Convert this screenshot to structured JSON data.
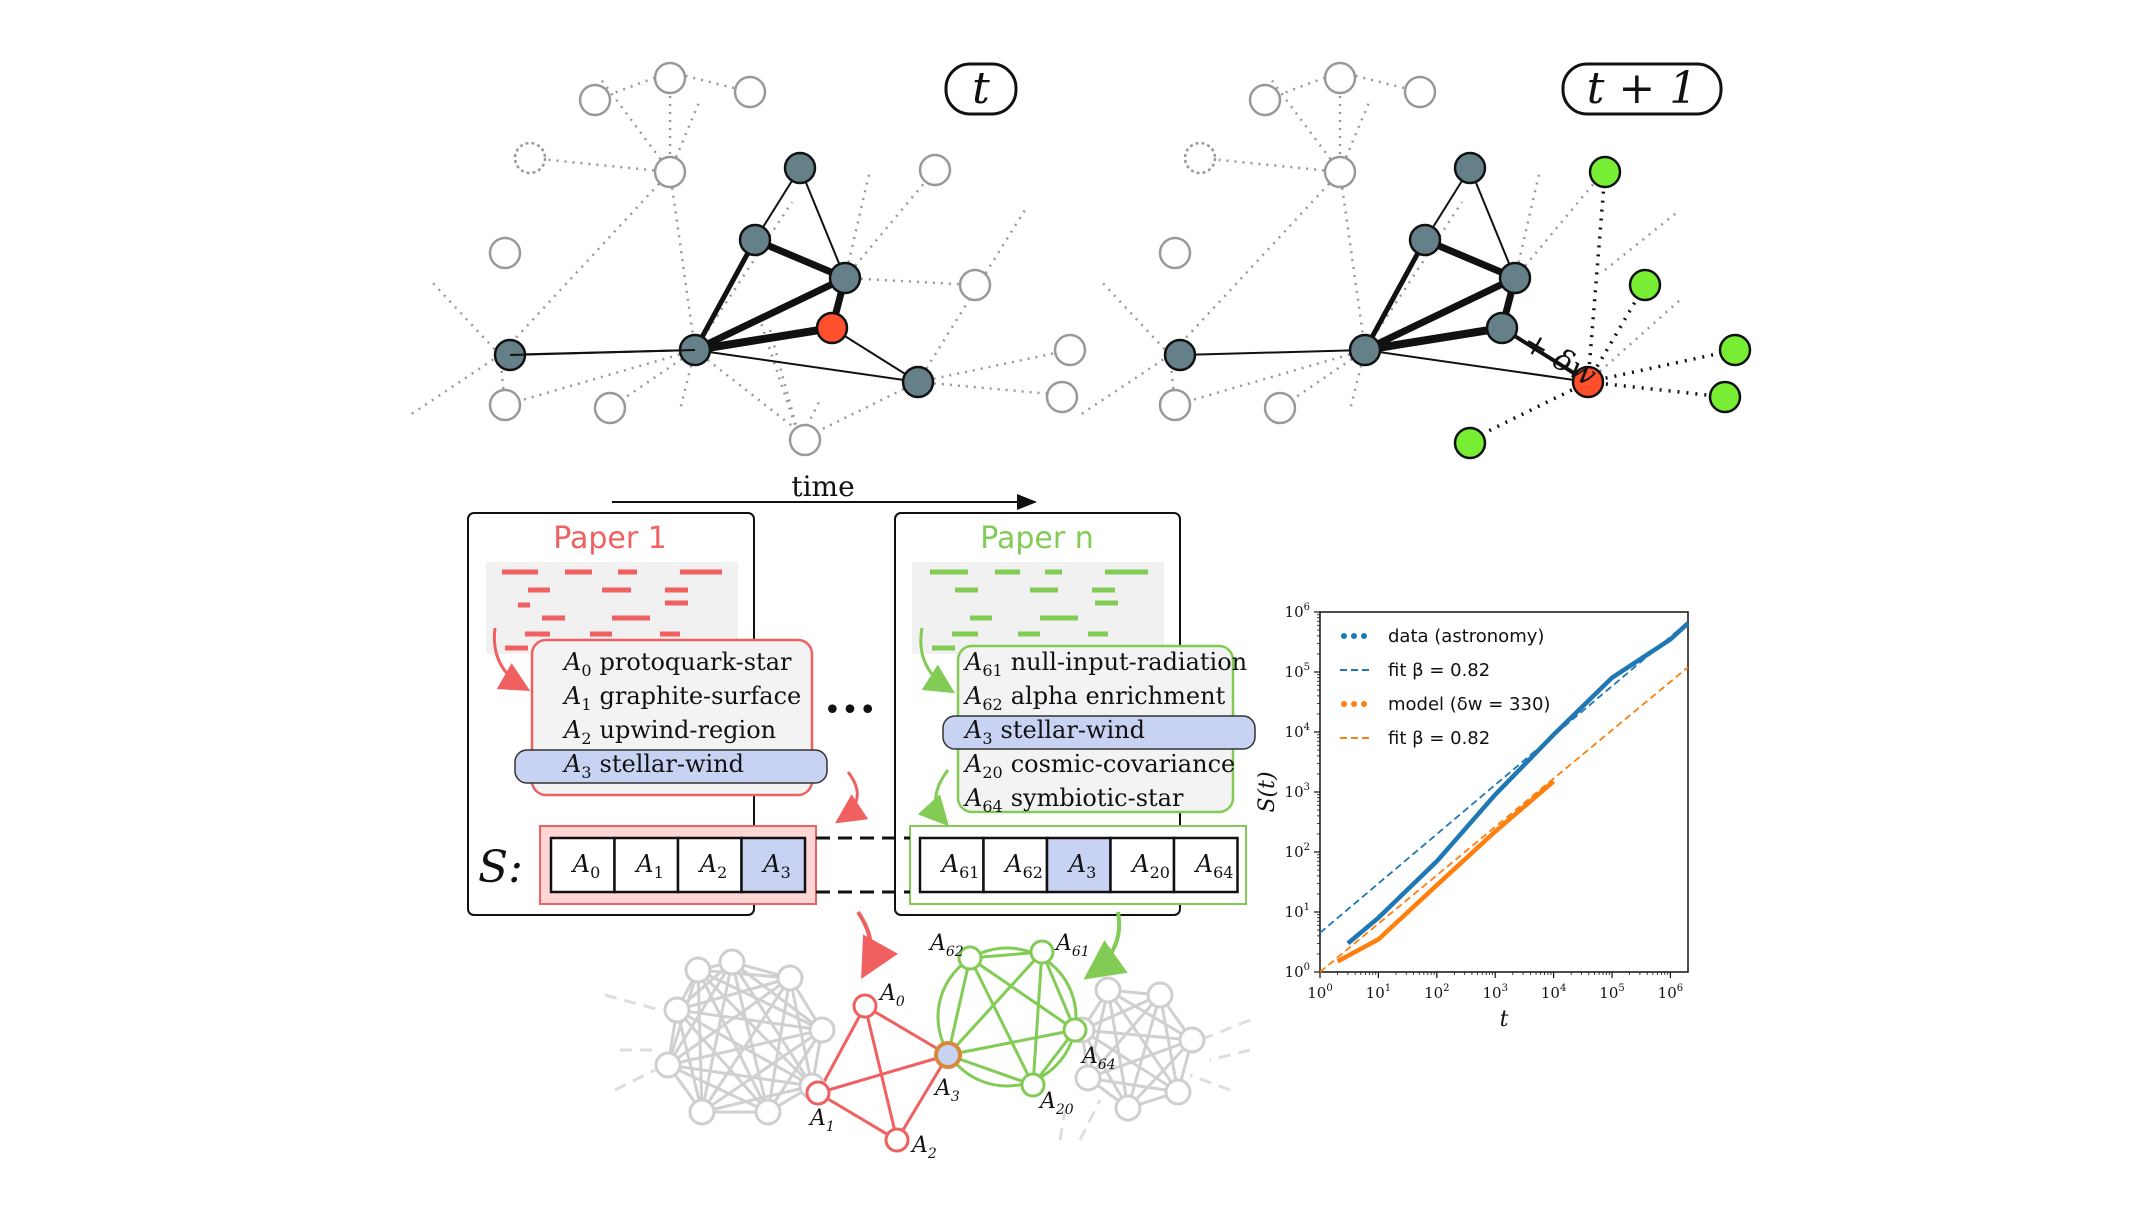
{
  "top": {
    "label_t": "t",
    "label_t1": "t + 1",
    "delta_w": "+ δw",
    "time_label": "time"
  },
  "papers": {
    "paper1": {
      "title": "Paper 1",
      "color": "#f06060",
      "keywords": [
        {
          "sym": "A",
          "sub": "0",
          "text": "protoquark-star"
        },
        {
          "sym": "A",
          "sub": "1",
          "text": "graphite-surface"
        },
        {
          "sym": "A",
          "sub": "2",
          "text": "upwind-region"
        },
        {
          "sym": "A",
          "sub": "3",
          "text": "stellar-wind"
        }
      ],
      "sequence": [
        {
          "sym": "A",
          "sub": "0"
        },
        {
          "sym": "A",
          "sub": "1"
        },
        {
          "sym": "A",
          "sub": "2"
        },
        {
          "sym": "A",
          "sub": "3"
        }
      ]
    },
    "ellipsis": "•••",
    "papern": {
      "title": "Paper n",
      "color": "#82cc55",
      "keywords": [
        {
          "sym": "A",
          "sub": "61",
          "text": "null-input-radiation"
        },
        {
          "sym": "A",
          "sub": "62",
          "text": "alpha enrichment"
        },
        {
          "sym": "A",
          "sub": "3",
          "text": "stellar-wind"
        },
        {
          "sym": "A",
          "sub": "20",
          "text": "cosmic-covariance"
        },
        {
          "sym": "A",
          "sub": "64",
          "text": "symbiotic-star"
        }
      ],
      "sequence": [
        {
          "sym": "A",
          "sub": "61"
        },
        {
          "sym": "A",
          "sub": "62"
        },
        {
          "sym": "A",
          "sub": "3"
        },
        {
          "sym": "A",
          "sub": "20"
        },
        {
          "sym": "A",
          "sub": "64"
        }
      ]
    },
    "s_label": "S:"
  },
  "graph_labels": {
    "a0": {
      "sym": "A",
      "sub": "0"
    },
    "a1": {
      "sym": "A",
      "sub": "1"
    },
    "a2": {
      "sym": "A",
      "sub": "2"
    },
    "a3": {
      "sym": "A",
      "sub": "3"
    },
    "a62": {
      "sym": "A",
      "sub": "62"
    },
    "a61": {
      "sym": "A",
      "sub": "61"
    },
    "a64": {
      "sym": "A",
      "sub": "64"
    },
    "a20": {
      "sym": "A",
      "sub": "20"
    }
  },
  "colors": {
    "red": "#f06060",
    "green": "#82cc55",
    "node_dark": "#66808a",
    "node_red": "#ff4f2d",
    "node_green": "#77ee33",
    "highlight": "#c8d2f2",
    "blue": "#1f77b4",
    "orange": "#ff7f0e"
  },
  "chart_data": {
    "type": "line",
    "xlabel": "t",
    "ylabel": "S(t)",
    "xscale": "log",
    "yscale": "log",
    "xlim": [
      1,
      2000000
    ],
    "ylim": [
      1,
      1000000
    ],
    "xticks": [
      "10^0",
      "10^1",
      "10^2",
      "10^3",
      "10^4",
      "10^5",
      "10^6"
    ],
    "yticks": [
      "10^0",
      "10^1",
      "10^2",
      "10^3",
      "10^4",
      "10^5",
      "10^6"
    ],
    "legend_position": "top-left",
    "series": [
      {
        "name": "data (astronomy)",
        "style": "dotted",
        "color": "#1f77b4",
        "x": [
          3,
          10,
          100,
          1000,
          10000,
          100000,
          1000000,
          2000000
        ],
        "y": [
          3,
          8,
          70,
          900,
          9000,
          80000,
          350000,
          650000
        ]
      },
      {
        "name": "fit β = 0.82",
        "style": "dashed",
        "color": "#1f77b4",
        "x": [
          1,
          2000000
        ],
        "y": [
          4.5,
          680000
        ]
      },
      {
        "name": "model (δw = 330)",
        "style": "dotted",
        "color": "#ff7f0e",
        "x": [
          2,
          10,
          100,
          1000,
          10000
        ],
        "y": [
          1.5,
          3.5,
          28,
          220,
          1500
        ]
      },
      {
        "name": "fit β = 0.82",
        "style": "dashed",
        "color": "#ff7f0e",
        "x": [
          1,
          2000000
        ],
        "y": [
          1,
          120000
        ]
      }
    ]
  }
}
